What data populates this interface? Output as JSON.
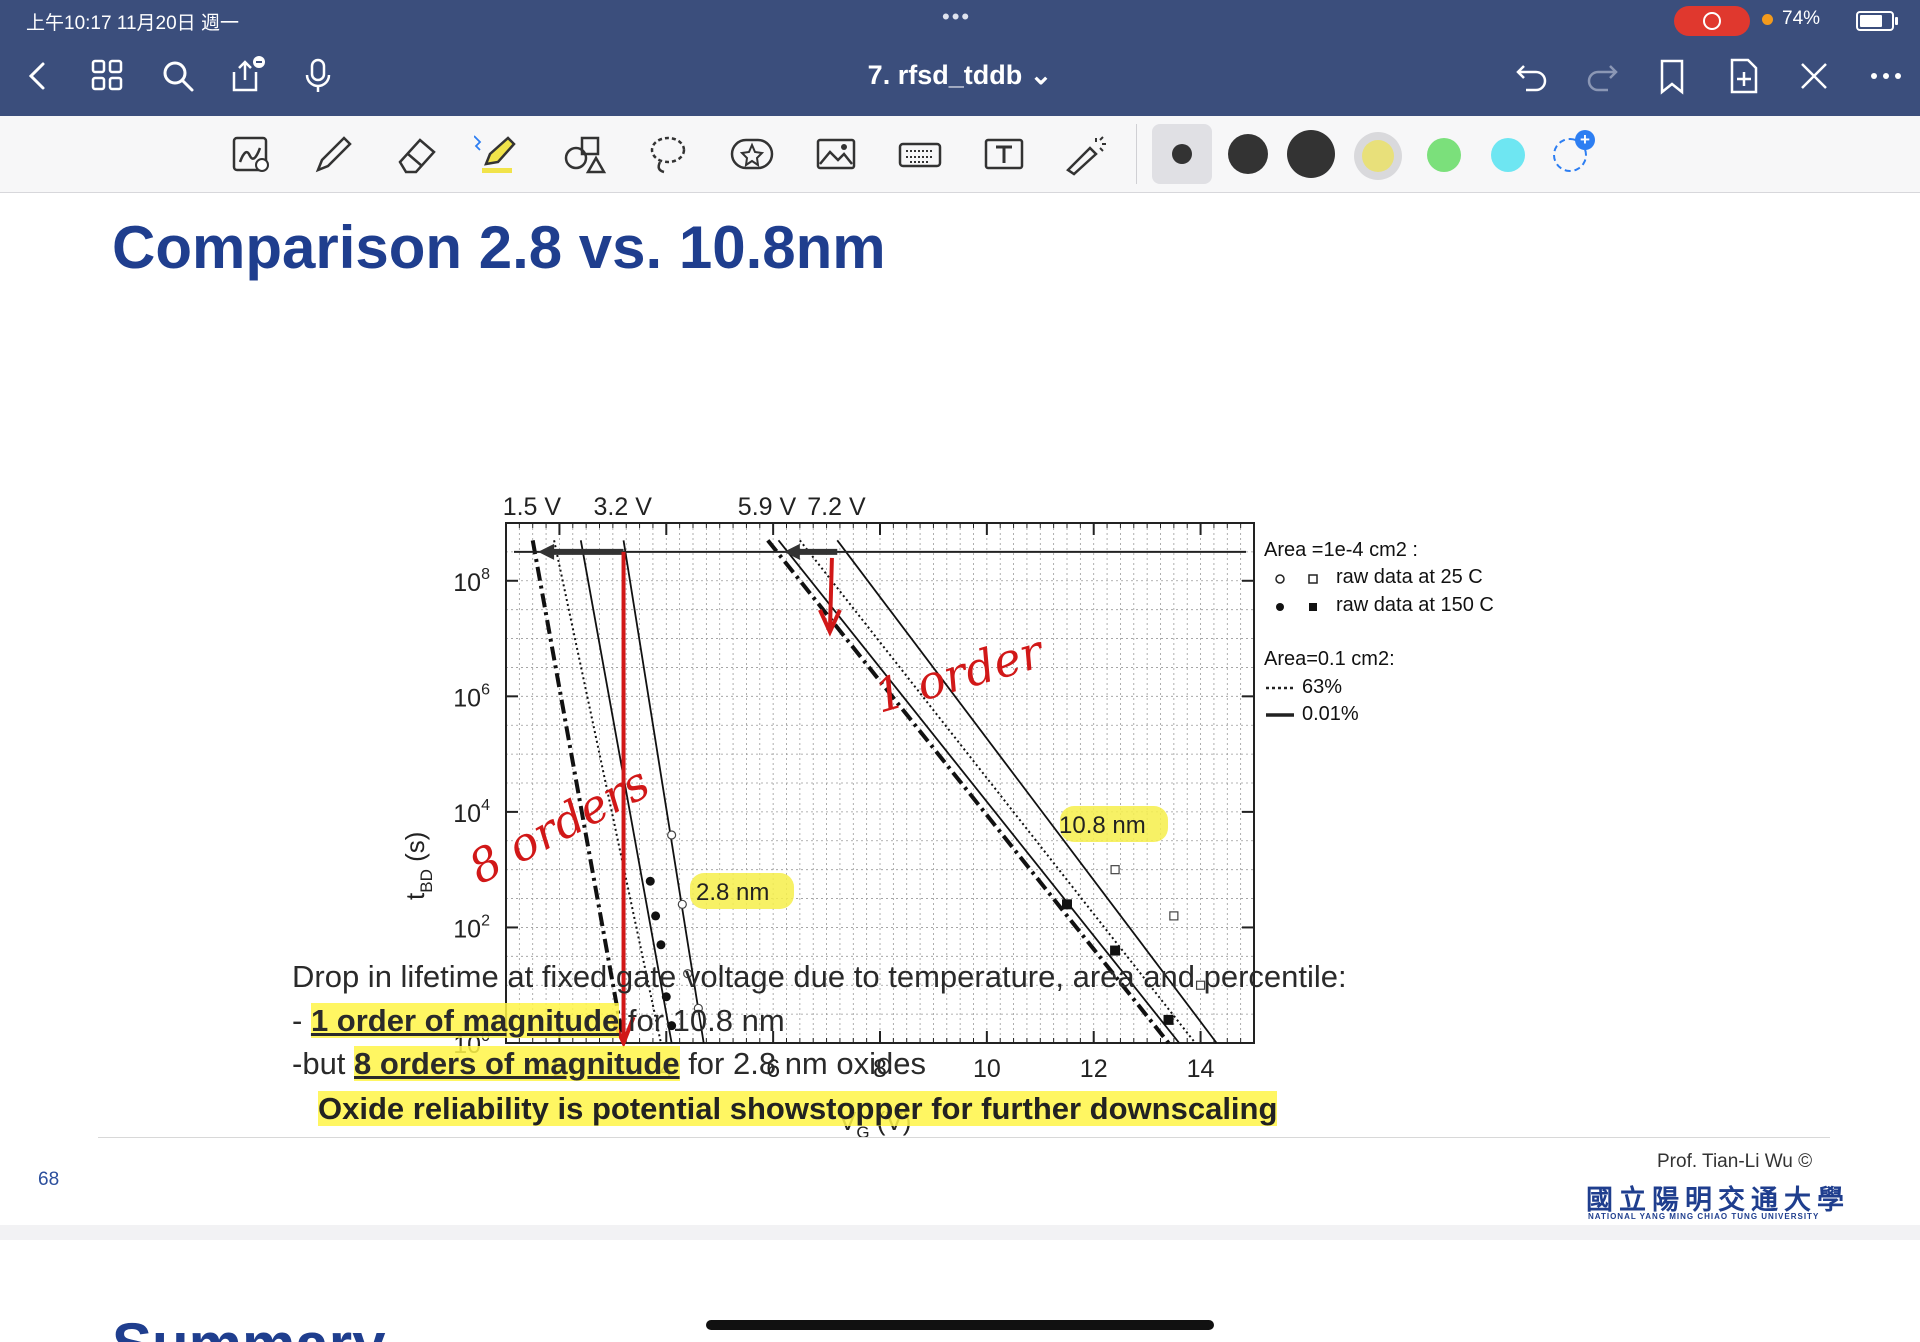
{
  "status": {
    "time": "上午10:17  11月20日 週一",
    "battery": "74%"
  },
  "doc": {
    "title": "7. rfsd_tddb ⌄"
  },
  "colors": {
    "accent": "#3b4e7c",
    "slide_title": "#1f3e8e",
    "pen_swatches": [
      "#333333",
      "#333333",
      "#333333",
      "#e8e07a",
      "#7be07b",
      "#6ee6f2"
    ]
  },
  "slide": {
    "title": "Comparison 2.8 vs. 10.8nm",
    "body": {
      "line1": "Drop in lifetime at fixed gate voltage due to temperature, area and percentile:",
      "line2_prefix": "- ",
      "line2_bold": "1 order of magnitude",
      "line2_suffix": " for 10.8 nm",
      "line3_prefix": "-but ",
      "line3_bold": "8 orders of magnitude",
      "line3_suffix": " for 2.8 nm oxides",
      "line4": "Oxide reliability is potential showstopper for further downscaling"
    },
    "legend": {
      "area1": "Area =1e-4 cm2 :",
      "raw25": "raw data at 25 C",
      "raw150": "raw data at 150 C",
      "area2": "Area=0.1 cm2:",
      "p63": "63%",
      "p001": "0.01%"
    },
    "annotations": {
      "label_28": "2.8 nm",
      "label_108": "10.8 nm",
      "hand_1order": "1 order",
      "hand_8orders": "8 orders"
    },
    "page_number": "68",
    "credit": "Prof. Tian-Li Wu ©",
    "university_cn": "國立陽明交通大學",
    "university_en": "NATIONAL YANG MING CHIAO TUNG UNIVERSITY"
  },
  "next_slide": {
    "title_partial": "Summary"
  },
  "chart_data": {
    "type": "line",
    "xlabel": "VG (V)",
    "ylabel": "tBD (s)",
    "xlim": [
      1,
      15
    ],
    "ylim_log10": [
      0,
      9
    ],
    "yscale": "log",
    "x_ticks": [
      2,
      4,
      6,
      8,
      10,
      12,
      14
    ],
    "y_ticks": [
      "10^0",
      "10^2",
      "10^4",
      "10^6",
      "10^8"
    ],
    "top_labels": [
      "1.5 V",
      "3.2 V",
      "5.9 V",
      "7.2 V"
    ],
    "reference_line_log10": 8.5,
    "series": [
      {
        "name": "63%",
        "style": "dotted",
        "x": [
          1.9,
          3.9
        ],
        "log10_y": [
          8.7,
          0
        ]
      },
      {
        "name": "0.01%",
        "style": "dash-dot",
        "x": [
          1.5,
          3.2
        ],
        "log10_y": [
          8.7,
          0
        ]
      },
      {
        "style": "solid",
        "x": [
          2.4,
          4.1
        ],
        "log10_y": [
          8.7,
          0
        ]
      },
      {
        "style": "solid",
        "x": [
          3.2,
          4.7
        ],
        "log10_y": [
          8.7,
          0
        ]
      },
      {
        "name": "0.01%",
        "style": "dash-dot",
        "x": [
          5.9,
          13.4
        ],
        "log10_y": [
          8.7,
          0
        ]
      },
      {
        "name": "63%",
        "style": "dotted",
        "x": [
          6.5,
          13.9
        ],
        "log10_y": [
          8.7,
          0
        ]
      },
      {
        "style": "solid",
        "x": [
          6.1,
          13.6
        ],
        "log10_y": [
          8.7,
          0
        ]
      },
      {
        "style": "solid",
        "x": [
          7.2,
          14.3
        ],
        "log10_y": [
          8.7,
          0
        ]
      }
    ],
    "points": {
      "raw25_2p8": {
        "x": [
          4.1,
          4.3,
          4.4,
          4.6
        ],
        "log10_y": [
          3.6,
          2.4,
          1.2,
          0.6
        ]
      },
      "raw150_2p8": {
        "x": [
          3.7,
          3.8,
          3.9,
          4.0,
          4.1
        ],
        "log10_y": [
          2.8,
          2.2,
          1.7,
          0.8,
          0.3
        ]
      },
      "raw25_10p8": {
        "x": [
          12.4,
          13.5,
          14.0
        ],
        "log10_y": [
          3.0,
          2.2,
          1.0
        ]
      },
      "raw150_10p8": {
        "x": [
          11.5,
          12.4,
          13.4
        ],
        "log10_y": [
          2.4,
          1.6,
          0.4
        ]
      }
    }
  }
}
